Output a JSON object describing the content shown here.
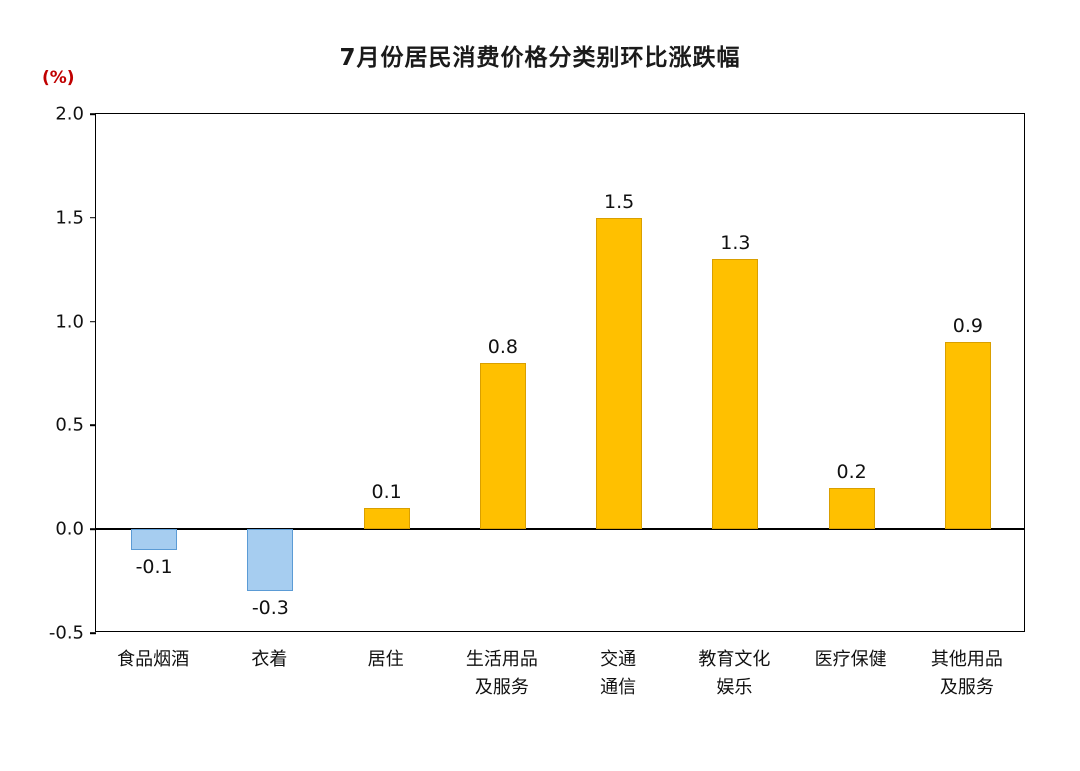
{
  "title": "7月份居民消费价格分类别环比涨跌幅",
  "unit_label": "(%)",
  "colors": {
    "positive_bar": "#FFC000",
    "positive_bar_border": "#D99F00",
    "negative_bar": "#A6CDF0",
    "negative_bar_border": "#5B9BD5",
    "axis": "#000000",
    "title_text": "#1a1a1a",
    "unit_text": "#c00000"
  },
  "chart_data": {
    "type": "bar",
    "title": "7月份居民消费价格分类别环比涨跌幅",
    "categories": [
      "食品烟酒",
      "衣着",
      "居住",
      "生活用品\n及服务",
      "交通\n通信",
      "教育文化\n娱乐",
      "医疗保健",
      "其他用品\n及服务"
    ],
    "values": [
      -0.1,
      -0.3,
      0.1,
      0.8,
      1.5,
      1.3,
      0.2,
      0.9
    ],
    "xlabel": "",
    "ylabel": "(%)",
    "ylim": [
      -0.5,
      2.0
    ],
    "yticks": [
      2.0,
      1.5,
      1.0,
      0.5,
      0.0,
      -0.5
    ],
    "grid": false,
    "legend": false,
    "value_labels_shown": true
  }
}
